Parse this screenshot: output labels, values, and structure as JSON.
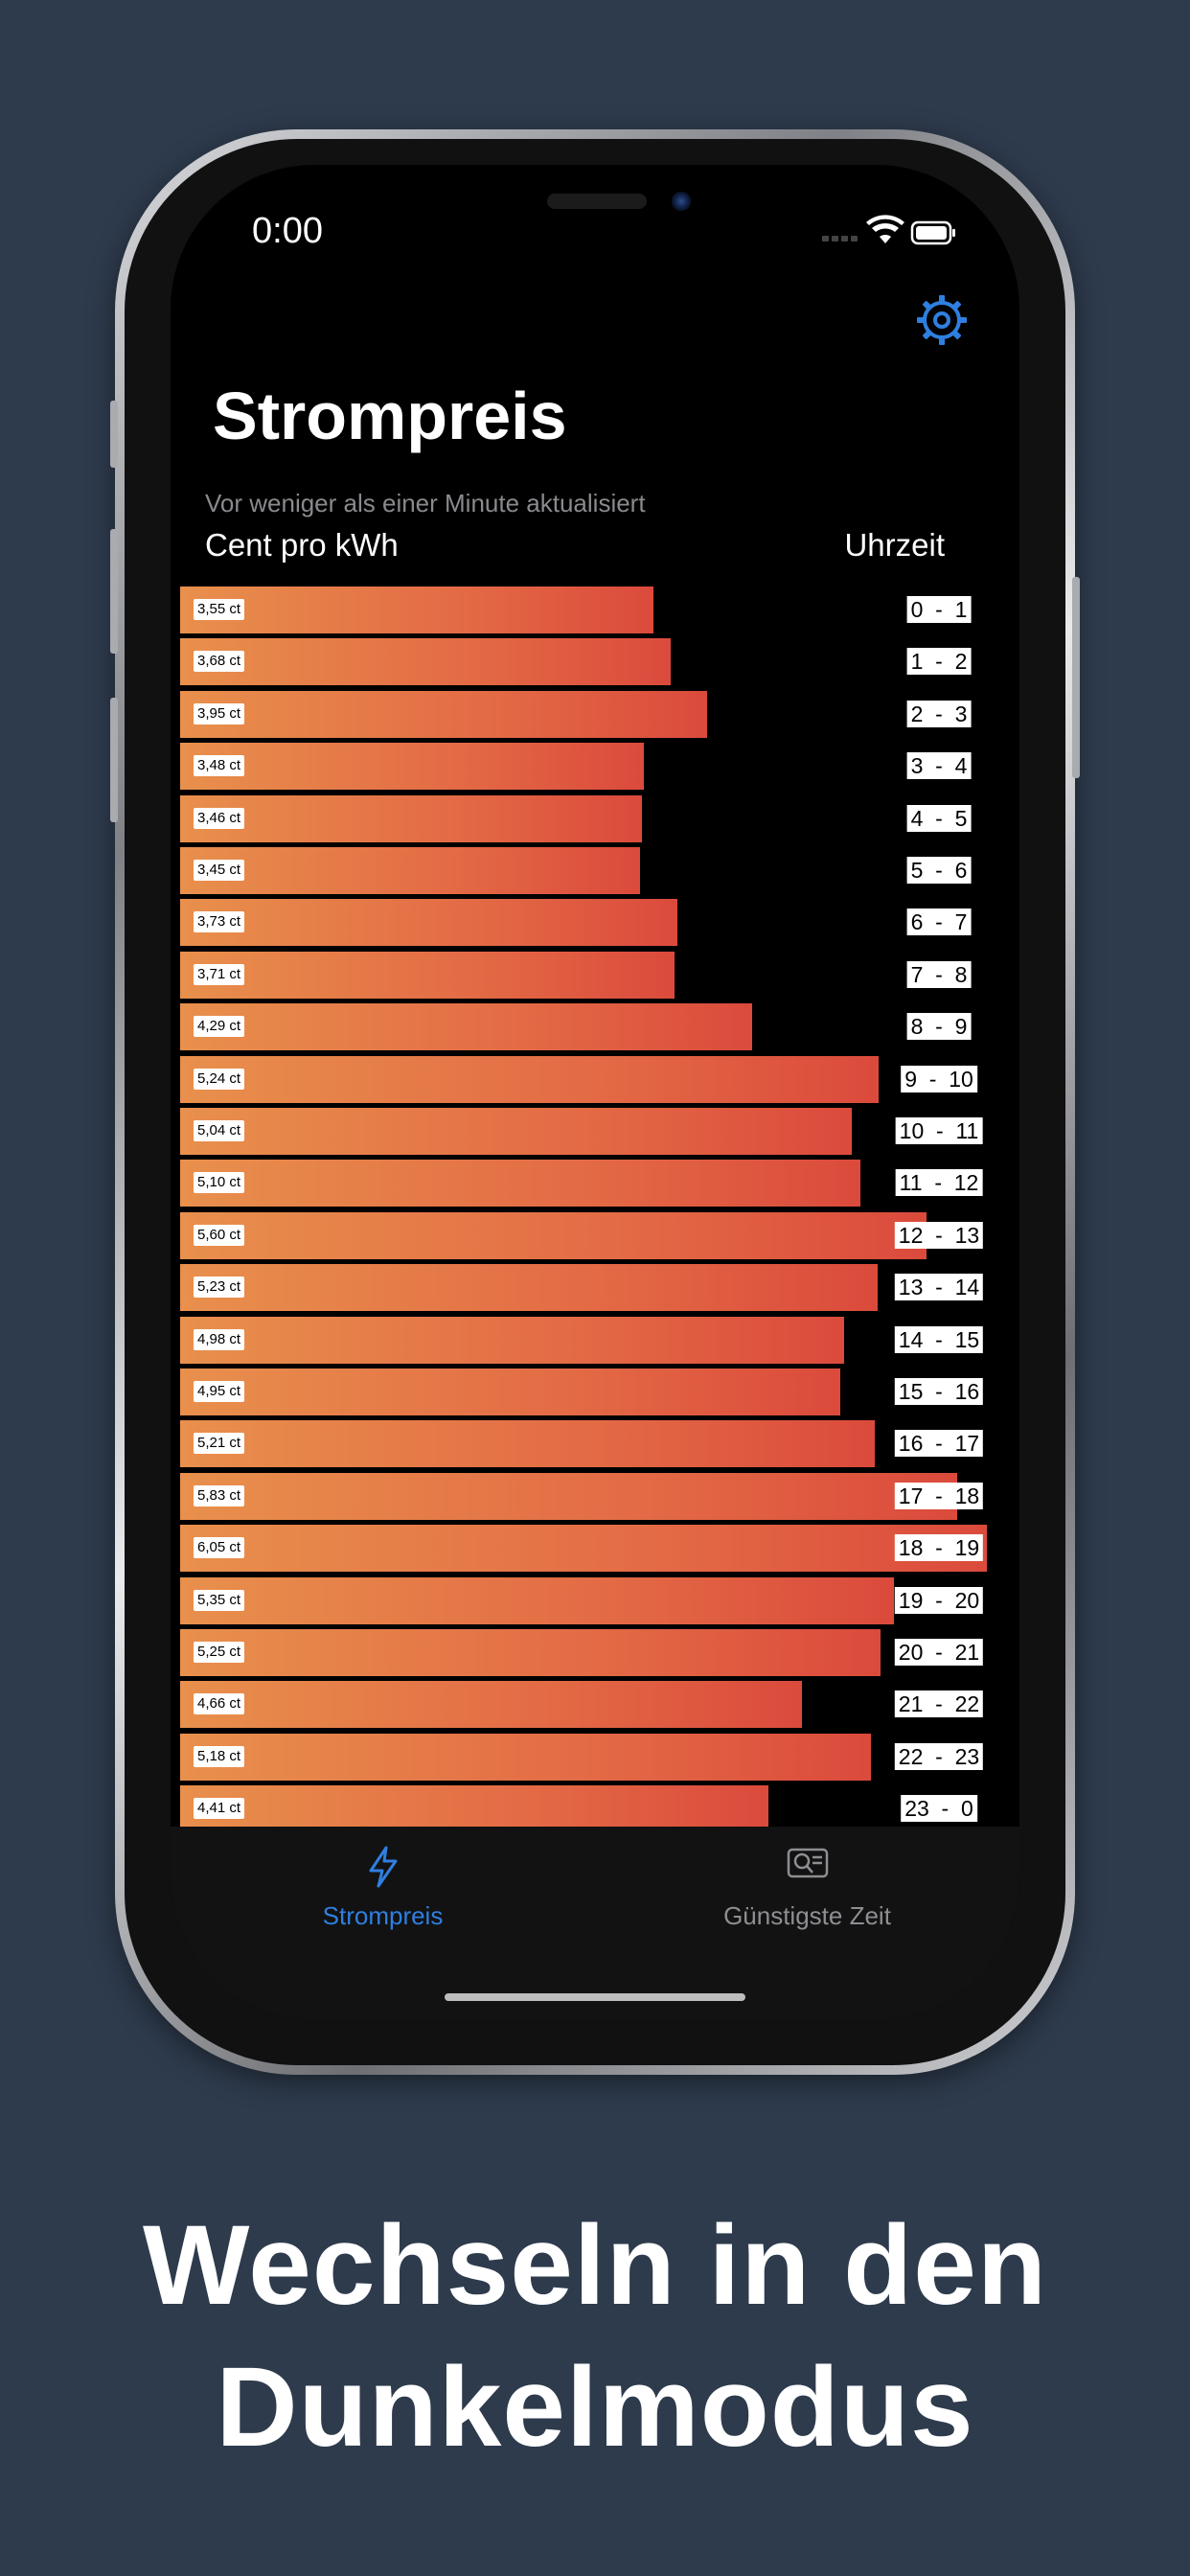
{
  "status_bar": {
    "time": "0:00"
  },
  "page": {
    "title": "Strompreis",
    "updated": "Vor weniger als einer Minute aktualisiert",
    "col_left": "Cent pro kWh",
    "col_right": "Uhrzeit"
  },
  "colors": {
    "accent": "#2f7fe0",
    "bar_start": "#e8904c",
    "bar_end": "#db4a3c"
  },
  "chart_data": {
    "type": "bar",
    "orientation": "horizontal",
    "unit": "ct",
    "rows": [
      {
        "label": "3,55 ct",
        "value": 3.55,
        "hour": "0  -  1"
      },
      {
        "label": "3,68 ct",
        "value": 3.68,
        "hour": "1  -  2"
      },
      {
        "label": "3,95 ct",
        "value": 3.95,
        "hour": "2  -  3"
      },
      {
        "label": "3,48 ct",
        "value": 3.48,
        "hour": "3  -  4"
      },
      {
        "label": "3,46 ct",
        "value": 3.46,
        "hour": "4  -  5"
      },
      {
        "label": "3,45 ct",
        "value": 3.45,
        "hour": "5  -  6"
      },
      {
        "label": "3,73 ct",
        "value": 3.73,
        "hour": "6  -  7"
      },
      {
        "label": "3,71 ct",
        "value": 3.71,
        "hour": "7  -  8"
      },
      {
        "label": "4,29 ct",
        "value": 4.29,
        "hour": "8  -  9"
      },
      {
        "label": "5,24 ct",
        "value": 5.24,
        "hour": "9  -  10"
      },
      {
        "label": "5,04 ct",
        "value": 5.04,
        "hour": "10  -  11"
      },
      {
        "label": "5,10 ct",
        "value": 5.1,
        "hour": "11  -  12"
      },
      {
        "label": "5,60 ct",
        "value": 5.6,
        "hour": "12  -  13"
      },
      {
        "label": "5,23 ct",
        "value": 5.23,
        "hour": "13  -  14"
      },
      {
        "label": "4,98 ct",
        "value": 4.98,
        "hour": "14  -  15"
      },
      {
        "label": "4,95 ct",
        "value": 4.95,
        "hour": "15  -  16"
      },
      {
        "label": "5,21 ct",
        "value": 5.21,
        "hour": "16  -  17"
      },
      {
        "label": "5,83 ct",
        "value": 5.83,
        "hour": "17  -  18"
      },
      {
        "label": "6,05 ct",
        "value": 6.05,
        "hour": "18  -  19"
      },
      {
        "label": "5,35 ct",
        "value": 5.35,
        "hour": "19  -  20"
      },
      {
        "label": "5,25 ct",
        "value": 5.25,
        "hour": "20  -  21"
      },
      {
        "label": "4,66 ct",
        "value": 4.66,
        "hour": "21  -  22"
      },
      {
        "label": "5,18 ct",
        "value": 5.18,
        "hour": "22  -  23"
      },
      {
        "label": "4,41 ct",
        "value": 4.41,
        "hour": "23  -  0"
      }
    ]
  },
  "tabs": [
    {
      "label": "Strompreis",
      "icon": "bolt-icon",
      "active": true
    },
    {
      "label": "Günstigste Zeit",
      "icon": "search-list-icon",
      "active": false
    }
  ],
  "caption": {
    "line1": "Wechseln in den",
    "line2": "Dunkelmodus"
  }
}
